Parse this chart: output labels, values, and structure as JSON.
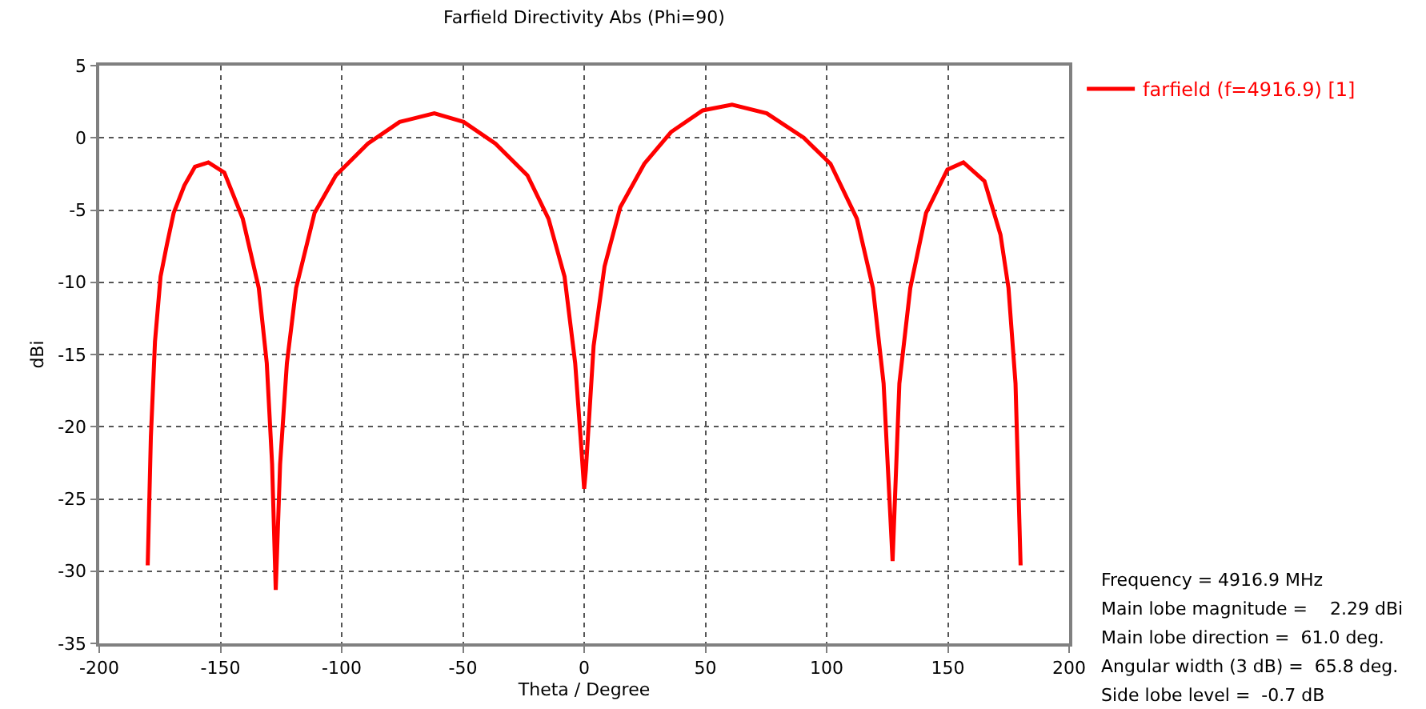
{
  "chart_data": {
    "type": "line",
    "title": "Farfield Directivity Abs (Phi=90)",
    "xlabel": "Theta / Degree",
    "ylabel": "dBi",
    "x": [
      -180,
      -178.7,
      -177,
      -174.7,
      -172.1,
      -169.3,
      -164.9,
      -160.5,
      -155,
      -148.4,
      -140.8,
      -134.2,
      -130.9,
      -128.7,
      -127.2,
      -125.4,
      -122.6,
      -118.8,
      -111.2,
      -102.4,
      -89.2,
      -76.1,
      -61.8,
      -49.7,
      -36.6,
      -23.4,
      -14.7,
      -8.1,
      -3.7,
      -1.5,
      0,
      0.7,
      3.9,
      8.4,
      14.9,
      24.8,
      35.8,
      48.9,
      61,
      75.3,
      90.6,
      101.6,
      112.5,
      119.1,
      123.5,
      127.2,
      130,
      134.5,
      141,
      149.8,
      156.4,
      165.1,
      171.7,
      175,
      177.9,
      180
    ],
    "series": [
      {
        "name": "farfield (f=4916.9) [1]",
        "color": "#ff0000",
        "values": [
          -29.6,
          -20.7,
          -14.1,
          -9.6,
          -7.4,
          -5.2,
          -3.3,
          -2.0,
          -1.7,
          -2.4,
          -5.6,
          -10.4,
          -15.6,
          -22.6,
          -31.3,
          -22.6,
          -15.6,
          -10.4,
          -5.2,
          -2.6,
          -0.4,
          1.1,
          1.7,
          1.1,
          -0.4,
          -2.6,
          -5.6,
          -9.6,
          -15.6,
          -20.7,
          -24.3,
          -23,
          -14.4,
          -8.9,
          -4.8,
          -1.8,
          0.4,
          1.9,
          2.3,
          1.7,
          0,
          -1.8,
          -5.6,
          -10.4,
          -17,
          -29.3,
          -17,
          -10.4,
          -5.2,
          -2.2,
          -1.7,
          -3,
          -6.7,
          -10.4,
          -17,
          -29.6
        ]
      }
    ],
    "xlim": [
      -200,
      200
    ],
    "xticks": [
      -200,
      -150,
      -100,
      -50,
      0,
      50,
      100,
      150,
      200
    ],
    "ylim": [
      -35,
      5
    ],
    "yticks": [
      -35,
      -30,
      -25,
      -20,
      -15,
      -10,
      -5,
      0,
      5
    ],
    "grid": true,
    "legend": "top right",
    "marker": "none",
    "line_style": "solid",
    "annotations": [
      "Frequency = 4916.9 MHz",
      "Main lobe magnitude =    2.29 dBi",
      "Main lobe direction =  61.0 deg.",
      "Angular width (3 dB) =  65.8 deg.",
      "Side lobe level =  -0.7 dB"
    ]
  }
}
